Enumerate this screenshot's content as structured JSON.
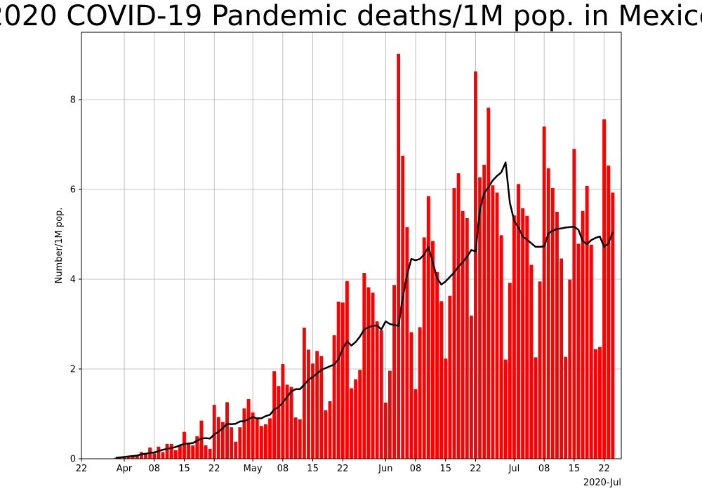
{
  "chart_data": {
    "type": "bar",
    "title": "2020 COVID-19 Pandemic deaths/1M pop. in Mexico",
    "xlabel": "",
    "ylabel": "Number/1M pop.",
    "x_start_date": "2020-03-22",
    "x_end_date": "2020-07-26",
    "ylim": [
      0,
      9.5
    ],
    "y_ticks": [
      "0",
      "2",
      "4",
      "6",
      "8"
    ],
    "x_ticks": [
      {
        "date": "2020-03-22",
        "label": "22"
      },
      {
        "date": "2020-04-01",
        "label": "Apr"
      },
      {
        "date": "2020-04-08",
        "label": "08"
      },
      {
        "date": "2020-04-15",
        "label": "15"
      },
      {
        "date": "2020-04-22",
        "label": "22"
      },
      {
        "date": "2020-05-01",
        "label": "May"
      },
      {
        "date": "2020-05-08",
        "label": "08"
      },
      {
        "date": "2020-05-15",
        "label": "15"
      },
      {
        "date": "2020-05-22",
        "label": "22"
      },
      {
        "date": "2020-06-01",
        "label": "Jun"
      },
      {
        "date": "2020-06-08",
        "label": "08"
      },
      {
        "date": "2020-06-15",
        "label": "15"
      },
      {
        "date": "2020-06-22",
        "label": "22"
      },
      {
        "date": "2020-07-01",
        "label": "Jul"
      },
      {
        "date": "2020-07-08",
        "label": "08"
      },
      {
        "date": "2020-07-15",
        "label": "15"
      },
      {
        "date": "2020-07-22",
        "label": "22"
      }
    ],
    "x_offset_label": "2020-Jul",
    "grid": true,
    "series": [
      {
        "kind": "bar",
        "color": "#ff0000",
        "x_start_date": "2020-03-30",
        "values": [
          0.02,
          0.03,
          0.04,
          0.05,
          0.07,
          0.06,
          0.15,
          0.13,
          0.25,
          0.12,
          0.27,
          0.15,
          0.33,
          0.33,
          0.19,
          0.3,
          0.6,
          0.36,
          0.3,
          0.5,
          0.85,
          0.3,
          0.22,
          1.2,
          0.93,
          0.82,
          1.26,
          0.7,
          0.38,
          0.7,
          1.12,
          1.33,
          1.03,
          0.9,
          0.73,
          0.77,
          0.9,
          1.95,
          1.62,
          2.11,
          1.65,
          1.6,
          0.92,
          0.88,
          2.92,
          2.43,
          2.12,
          2.4,
          2.29,
          1.08,
          1.28,
          2.75,
          3.5,
          3.48,
          3.96,
          1.57,
          1.77,
          1.98,
          4.14,
          3.82,
          3.7,
          3.06,
          2.86,
          1.25,
          1.96,
          3.87,
          9.02,
          6.75,
          5.16,
          2.82,
          1.55,
          2.93,
          4.93,
          5.85,
          4.85,
          4.16,
          3.51,
          2.23,
          3.63,
          6.03,
          6.36,
          5.52,
          5.36,
          3.19,
          8.63,
          6.27,
          6.55,
          7.82,
          6.09,
          5.93,
          4.98,
          2.21,
          3.92,
          5.42,
          6.12,
          5.58,
          5.41,
          4.32,
          2.26,
          3.95,
          7.4,
          6.47,
          6.03,
          5.5,
          4.46,
          2.27,
          3.99,
          6.9,
          4.79,
          5.52,
          6.08,
          4.77,
          2.44,
          2.49,
          7.56,
          6.53,
          5.93
        ]
      },
      {
        "kind": "line",
        "name": "",
        "color": "#000000",
        "x_start_date": "2020-03-30",
        "values": [
          0.02,
          0.03,
          0.04,
          0.05,
          0.06,
          0.07,
          0.1,
          0.11,
          0.13,
          0.14,
          0.17,
          0.2,
          0.22,
          0.24,
          0.26,
          0.3,
          0.33,
          0.34,
          0.35,
          0.4,
          0.45,
          0.46,
          0.45,
          0.54,
          0.6,
          0.68,
          0.78,
          0.77,
          0.78,
          0.83,
          0.84,
          0.88,
          0.93,
          0.9,
          0.9,
          0.95,
          0.98,
          1.1,
          1.15,
          1.25,
          1.38,
          1.5,
          1.55,
          1.55,
          1.65,
          1.76,
          1.82,
          1.9,
          1.98,
          2.02,
          2.06,
          2.1,
          2.22,
          2.45,
          2.62,
          2.52,
          2.6,
          2.72,
          2.88,
          2.93,
          2.96,
          2.97,
          2.88,
          3.06,
          3.0,
          2.98,
          2.96,
          3.6,
          4.1,
          4.45,
          4.42,
          4.45,
          4.55,
          4.72,
          4.38,
          4.02,
          3.88,
          3.95,
          4.05,
          4.15,
          4.28,
          4.38,
          4.5,
          4.65,
          4.62,
          5.55,
          5.92,
          6.05,
          6.2,
          6.3,
          6.38,
          6.6,
          5.7,
          5.3,
          5.15,
          4.95,
          4.88,
          4.8,
          4.72,
          4.72,
          4.73,
          5.02,
          5.08,
          5.12,
          5.13,
          5.15,
          5.16,
          5.17,
          5.1,
          4.85,
          4.78,
          4.87,
          4.92,
          4.95,
          4.72,
          4.8,
          5.05
        ]
      }
    ]
  }
}
